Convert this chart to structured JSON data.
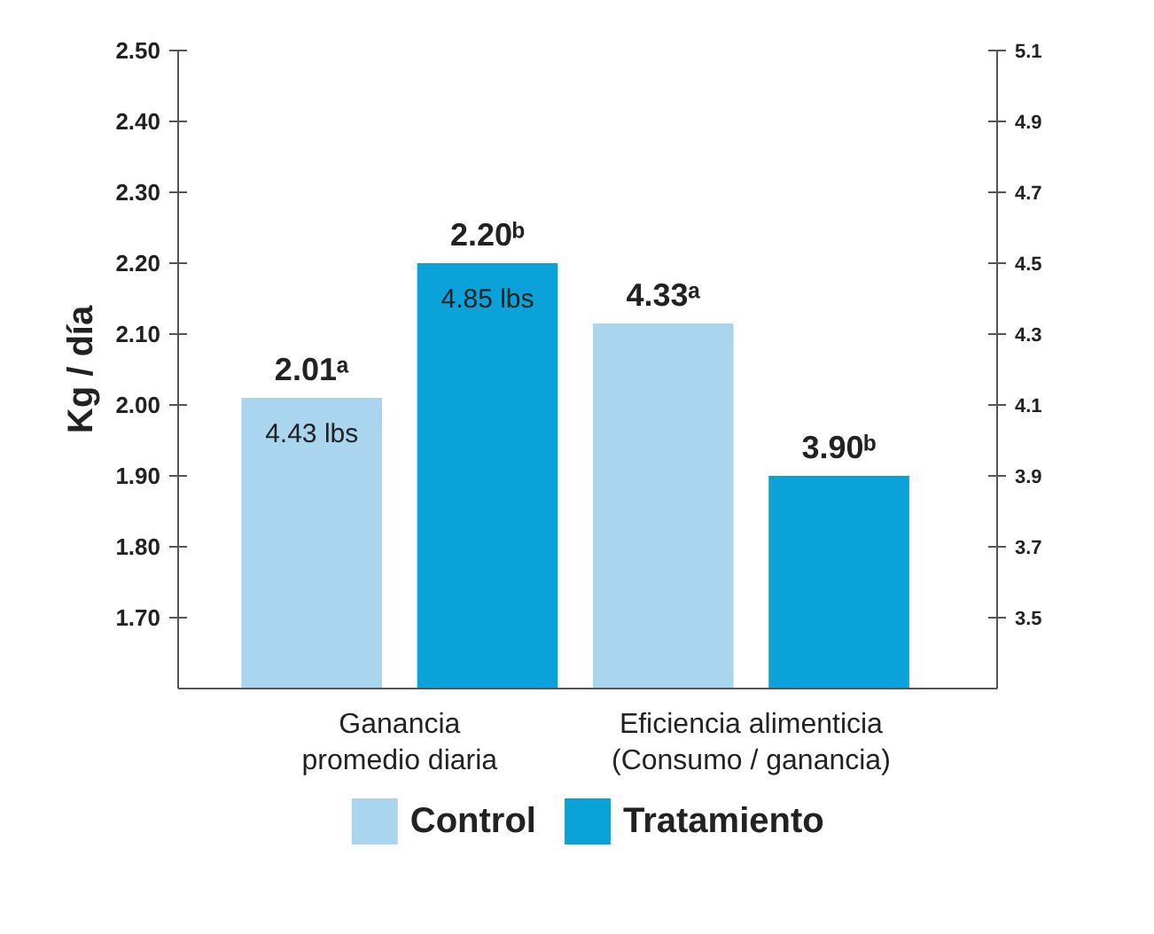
{
  "chart_data": {
    "type": "bar",
    "ylabel": "Kg / día",
    "categories": [
      "Ganancia\npromedio diaria",
      "Eficiencia alimenticia\n(Consumo / ganancia)"
    ],
    "series": [
      {
        "name": "Control",
        "color": "#a9d5ef",
        "values": [
          2.01,
          null
        ],
        "value_labels": [
          "2.01ᵃ",
          null
        ]
      },
      {
        "name": "Tratamiento",
        "color": "#0aa2d8",
        "values": [
          2.2,
          null
        ],
        "value_labels": [
          "2.20ᵇ",
          null
        ]
      },
      {
        "color": "#a9d5ef",
        "values": [
          null,
          4.33
        ],
        "axis": "y2",
        "value_labels": [
          null,
          "4.33ᵃ"
        ]
      },
      {
        "color": "#0aa2d8",
        "values": [
          null,
          3.9
        ],
        "axis": "y2",
        "value_labels": [
          null,
          "3.90ᵇ"
        ]
      }
    ],
    "annotations": [
      "4.43 lbs",
      "4.85 lbs"
    ],
    "ylim": [
      1.6,
      2.5
    ],
    "yticks": [
      {
        "value": 1.7,
        "label": "1.70"
      },
      {
        "value": 1.8,
        "label": "1.80"
      },
      {
        "value": 1.9,
        "label": "1.90"
      },
      {
        "value": 2.0,
        "label": "2.00"
      },
      {
        "value": 2.1,
        "label": "2.10"
      },
      {
        "value": 2.2,
        "label": "2.20"
      },
      {
        "value": 2.3,
        "label": "2.30"
      },
      {
        "value": 2.4,
        "label": "2.40"
      },
      {
        "value": 2.5,
        "label": "2.50"
      }
    ],
    "y2lim": [
      3.3,
      5.1
    ],
    "y2ticks": [
      3.5,
      3.7,
      3.9,
      4.1,
      4.3,
      4.5,
      4.7,
      4.9,
      5.1
    ],
    "grid": false,
    "legend": "bottom"
  }
}
